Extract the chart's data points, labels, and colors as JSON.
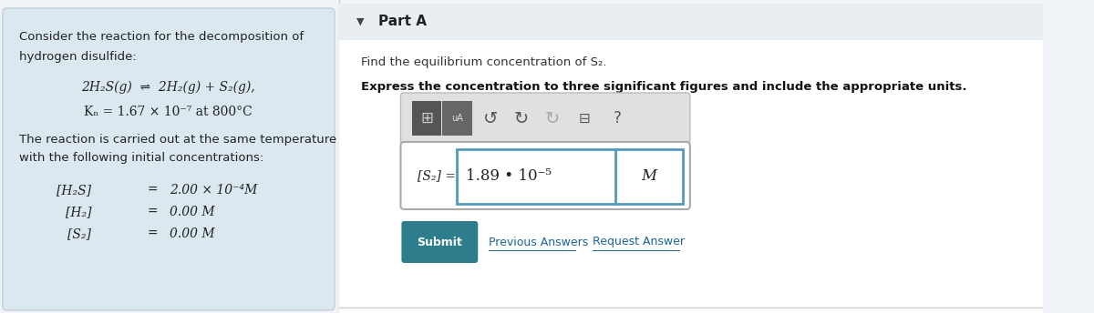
{
  "bg_color": "#f0f4f8",
  "left_panel_bg": "#dce8f0",
  "white": "#ffffff",
  "title_left_line1": "Consider the reaction for the decomposition of",
  "title_left_line2": "hydrogen disulfide:",
  "reaction_line": "2H₂S(g)  ⇌  2H₂(g) + S₂(g),",
  "kc_line": "Kₙ = 1.67 × 10⁻⁷ at 800°C",
  "temp_line1": "The reaction is carried out at the same temperature",
  "temp_line2": "with the following initial concentrations:",
  "conc1_label": "[H₂S]",
  "conc1_val": "2.00 × 10⁻⁴M",
  "conc2_label": "[H₂]",
  "conc2_val": "0.00 M",
  "conc3_label": "[S₂]",
  "conc3_val": "0.00 M",
  "part_a_label": "Part A",
  "find_text": "Find the equilibrium concentration of S₂.",
  "express_text": "Express the concentration to three significant figures and include the appropriate units.",
  "answer_label": "[S₂] =",
  "answer_value": "1.89 • 10⁻⁵",
  "answer_unit": "M",
  "submit_text": "Submit",
  "prev_answers_text": "Previous Answers",
  "request_answer_text": "Request Answer",
  "submit_bg": "#2e7d8c",
  "submit_text_color": "#ffffff",
  "link_color": "#1a6699",
  "answer_box_border": "#5599bb",
  "toolbar_bg": "#e0e0e0"
}
